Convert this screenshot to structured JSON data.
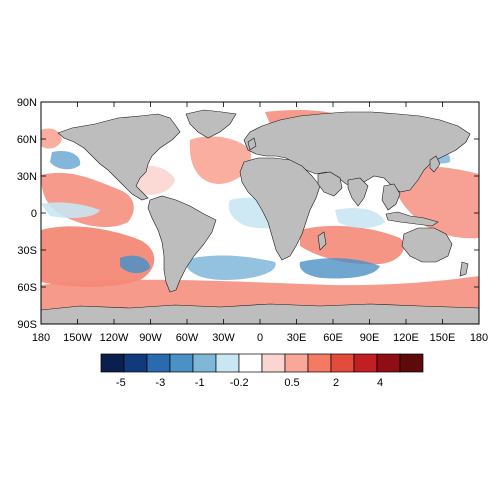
{
  "map": {
    "lat_labels": [
      "90N",
      "60N",
      "30N",
      "0",
      "30S",
      "60S",
      "90S"
    ],
    "lon_labels": [
      "180",
      "150W",
      "120W",
      "90W",
      "60W",
      "30W",
      "0",
      "30E",
      "60E",
      "90E",
      "120E",
      "150E",
      "180"
    ],
    "land_color": "#bdbdbd",
    "ocean_background": "#ffffff"
  },
  "colorbar": {
    "labels": [
      "-5",
      "-3",
      "-1",
      "-0.2",
      "0.5",
      "2",
      "4"
    ],
    "colors": [
      "#0b1f4e",
      "#113a7d",
      "#2a6bb0",
      "#4b91c6",
      "#7fb7d9",
      "#c9e6f3",
      "#ffffff",
      "#fbd5d0",
      "#f8a799",
      "#f47a64",
      "#e34b3a",
      "#c21f25",
      "#8f0d14",
      "#5e0a0a"
    ]
  }
}
